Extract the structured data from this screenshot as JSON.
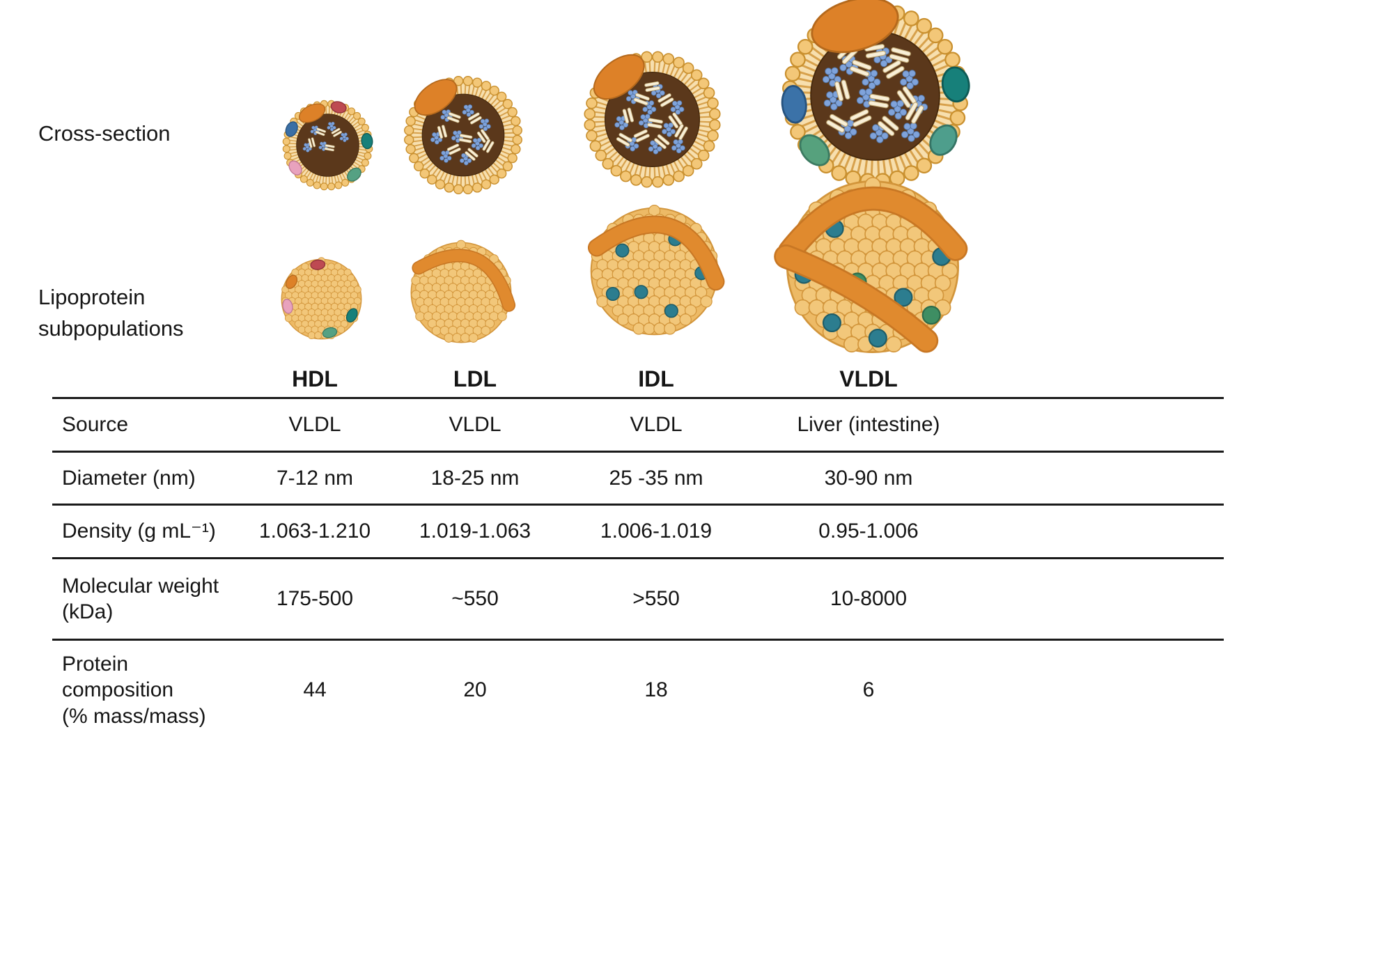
{
  "figure_labels": {
    "cross_section": "Cross-section",
    "subpopulations": "Lipoprotein\nsubpopulations"
  },
  "table": {
    "column_headers": [
      "HDL",
      "LDL",
      "IDL",
      "VLDL"
    ],
    "rows": [
      {
        "label": "Source",
        "values": [
          "VLDL",
          "VLDL",
          "VLDL",
          "Liver (intestine)"
        ]
      },
      {
        "label": "Diameter (nm)",
        "values": [
          "7-12 nm",
          "18-25 nm",
          "25 -35 nm",
          "30-90 nm"
        ]
      },
      {
        "label": "Density (g mL⁻¹)",
        "values": [
          "1.063-1.210",
          "1.019-1.063",
          "1.006-1.019",
          "0.95-1.006"
        ]
      },
      {
        "label": "Molecular weight\n(kDa)",
        "values": [
          "175-500",
          "~550",
          ">550",
          "10-8000"
        ]
      },
      {
        "label": "Protein\ncomposition\n(% mass/mass)",
        "values": [
          "44",
          "20",
          "18",
          "6"
        ]
      }
    ]
  },
  "illustrations": {
    "cross_section_row": [
      "hdl-cross-section",
      "ldl-cross-section",
      "idl-cross-section",
      "vldl-cross-section"
    ],
    "subpopulation_row": [
      "hdl-subpopulation-sphere",
      "ldl-subpopulation-sphere",
      "idl-subpopulation-sphere",
      "vldl-subpopulation-sphere"
    ]
  },
  "colors": {
    "apolipoprotein_orange": "#DD8128",
    "phospholipid_head": "#F3C778",
    "lipid_core_brown": "#5B381B",
    "cholesterol_blue": "#7FA3DB",
    "ester_cream": "#F8EFD7",
    "teal_protein": "#17807A",
    "green_protein": "#55A183",
    "red_protein": "#BE4A52",
    "pink_protein": "#E8A2BD",
    "blue_protein": "#3B72A8",
    "sphere_body": "#EDBA66",
    "rule_line": "#1a1a1a"
  }
}
